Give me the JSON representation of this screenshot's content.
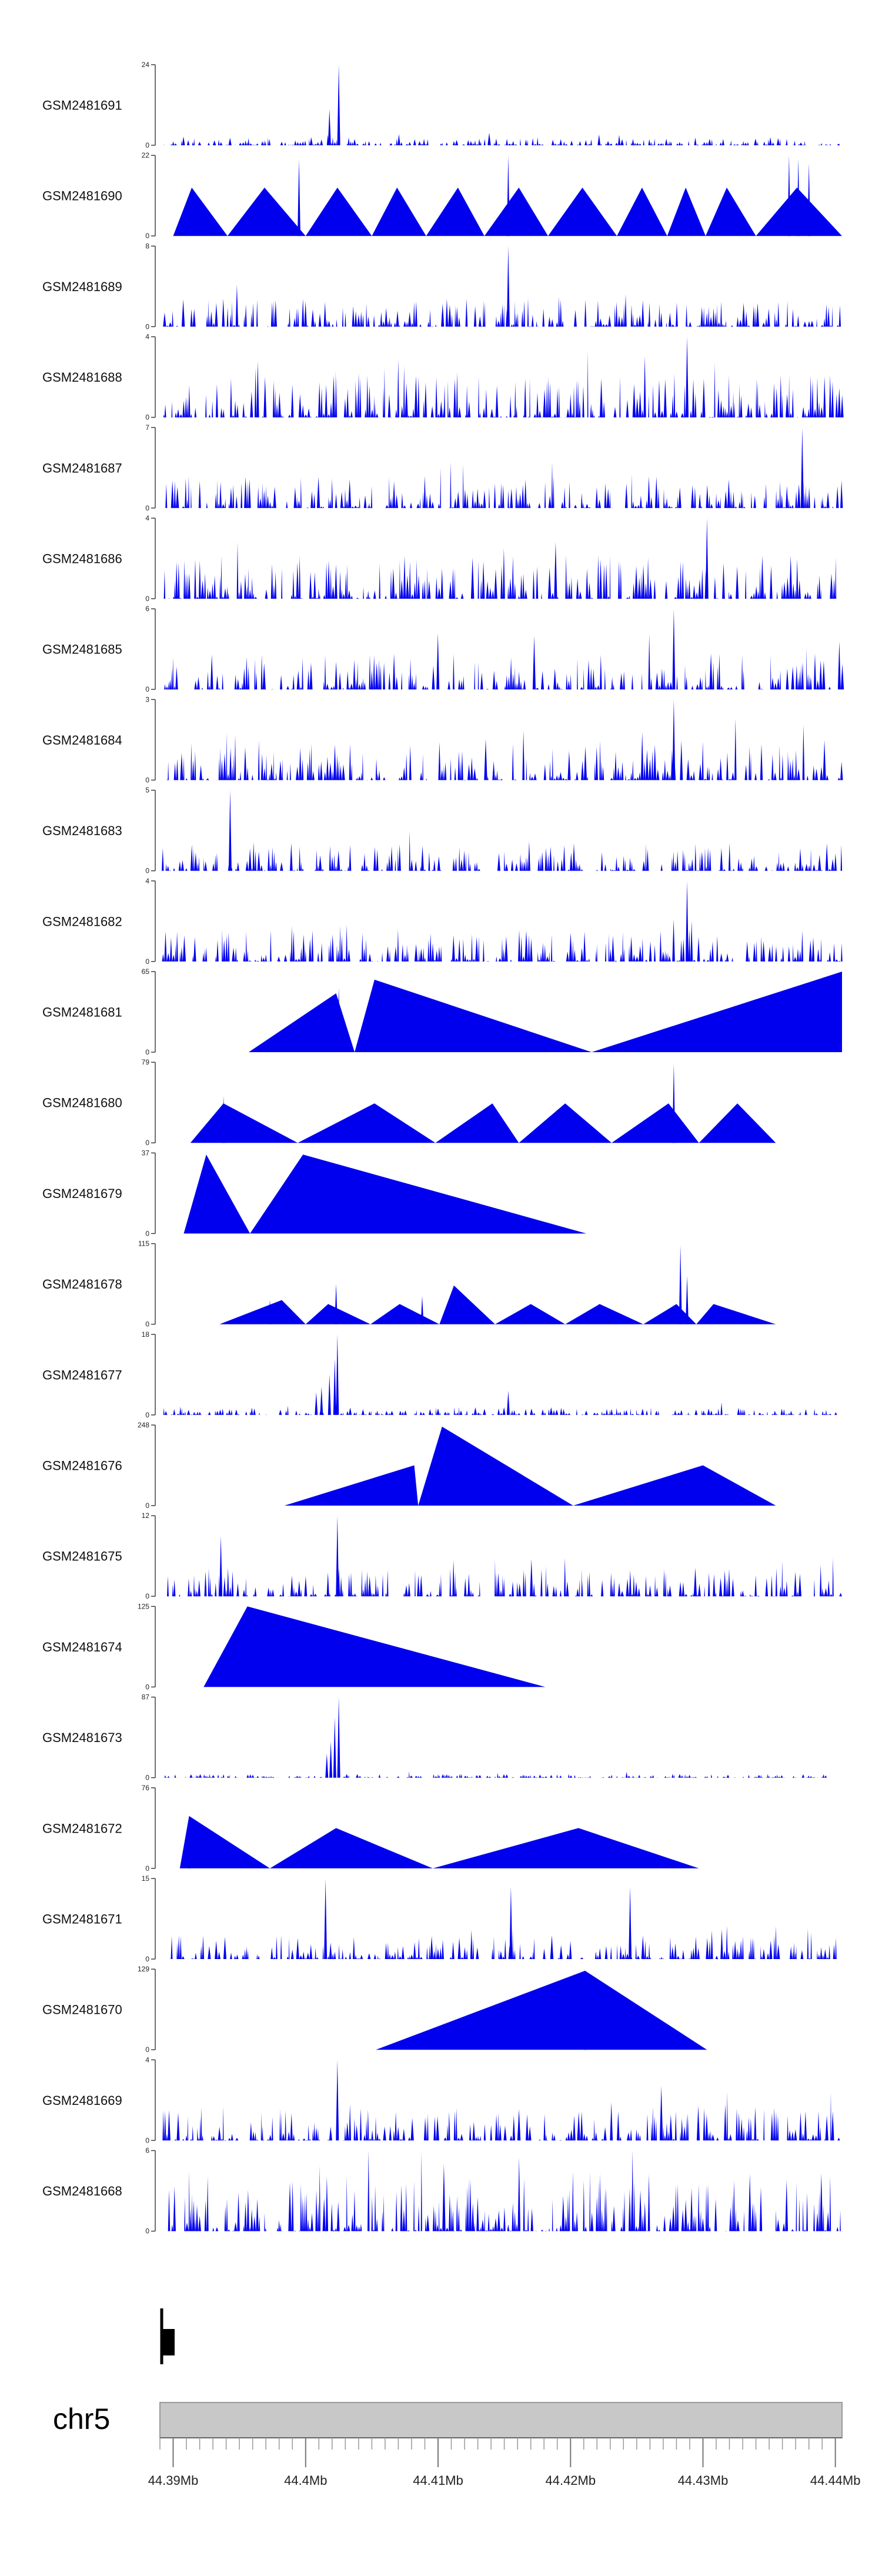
{
  "chart_data": {
    "type": "area",
    "title": "",
    "chromosome": "chr5",
    "x_range_mb": [
      44.389,
      44.4405
    ],
    "axis_tick_labels": [
      "44.39Mb",
      "44.4Mb",
      "44.41Mb",
      "44.42Mb",
      "44.43Mb",
      "44.44Mb"
    ],
    "axis_tick_positions_mb": [
      44.39,
      44.4,
      44.41,
      44.42,
      44.43,
      44.44
    ],
    "fill_color": "#0000ee",
    "tracks": [
      {
        "name": "GSM2481691",
        "ymax": 24,
        "style": "dense",
        "seed": 11,
        "base": 0.1,
        "spikes": [
          [
            44.4025,
            1.0
          ],
          [
            44.4018,
            0.45
          ]
        ]
      },
      {
        "name": "GSM2481690",
        "ymax": 22,
        "style": "peaks",
        "seed": 12,
        "peaks": [
          [
            44.39,
            44.3914,
            44.3941,
            0.6
          ],
          [
            44.3941,
            44.3969,
            44.4,
            0.6
          ],
          [
            44.4,
            44.4024,
            44.405,
            0.6
          ],
          [
            44.405,
            44.4069,
            44.4091,
            0.6
          ],
          [
            44.4091,
            44.4115,
            44.4135,
            0.6
          ],
          [
            44.4135,
            44.4161,
            44.4183,
            0.6
          ],
          [
            44.4183,
            44.4209,
            44.4235,
            0.6
          ],
          [
            44.4235,
            44.4254,
            44.4273,
            0.6
          ],
          [
            44.4273,
            44.4287,
            44.4302,
            0.6
          ],
          [
            44.4302,
            44.4318,
            44.434,
            0.6
          ],
          [
            44.434,
            44.4371,
            44.4405,
            0.6
          ]
        ],
        "spikes": [
          [
            44.3995,
            0.95
          ],
          [
            44.4153,
            1.0
          ],
          [
            44.4365,
            1.0
          ],
          [
            44.4372,
            0.96
          ],
          [
            44.438,
            0.9
          ]
        ]
      },
      {
        "name": "GSM2481689",
        "ymax": 8,
        "style": "dense",
        "seed": 13,
        "base": 0.35,
        "spikes": [
          [
            44.4153,
            1.0
          ]
        ]
      },
      {
        "name": "GSM2481688",
        "ymax": 4,
        "style": "dense",
        "seed": 14,
        "base": 0.55,
        "spikes": [
          [
            44.4288,
            1.0
          ]
        ]
      },
      {
        "name": "GSM2481687",
        "ymax": 7,
        "style": "dense",
        "seed": 15,
        "base": 0.4,
        "spikes": [
          [
            44.4375,
            1.0
          ]
        ]
      },
      {
        "name": "GSM2481686",
        "ymax": 4,
        "style": "dense",
        "seed": 16,
        "base": 0.55,
        "spikes": [
          [
            44.4303,
            1.0
          ]
        ]
      },
      {
        "name": "GSM2481685",
        "ymax": 6,
        "style": "dense",
        "seed": 17,
        "base": 0.45,
        "spikes": [
          [
            44.4278,
            1.0
          ]
        ]
      },
      {
        "name": "GSM2481684",
        "ymax": 3,
        "style": "dense",
        "seed": 18,
        "base": 0.5,
        "spikes": [
          [
            44.4278,
            1.0
          ]
        ]
      },
      {
        "name": "GSM2481683",
        "ymax": 5,
        "style": "dense",
        "seed": 19,
        "base": 0.35,
        "spikes": [
          [
            44.3943,
            1.0
          ]
        ]
      },
      {
        "name": "GSM2481682",
        "ymax": 4,
        "style": "dense",
        "seed": 20,
        "base": 0.4,
        "spikes": [
          [
            44.4288,
            1.0
          ]
        ]
      },
      {
        "name": "GSM2481681",
        "ymax": 65,
        "style": "peaks",
        "seed": 21,
        "peaks": [
          [
            44.3957,
            44.4023,
            44.4037,
            0.73
          ],
          [
            44.4037,
            44.4052,
            44.4216,
            0.9
          ],
          [
            44.4216,
            44.4405,
            44.4405,
            1.0
          ]
        ],
        "spikes": [
          [
            44.4025,
            0.8
          ]
        ]
      },
      {
        "name": "GSM2481680",
        "ymax": 79,
        "style": "peaks",
        "seed": 22,
        "peaks": [
          [
            44.3913,
            44.3938,
            44.3994,
            0.49
          ],
          [
            44.3994,
            44.4052,
            44.4098,
            0.49
          ],
          [
            44.4098,
            44.4141,
            44.4161,
            0.49
          ],
          [
            44.4161,
            44.4196,
            44.4231,
            0.49
          ],
          [
            44.4231,
            44.4274,
            44.4297,
            0.49
          ],
          [
            44.4297,
            44.4326,
            44.4355,
            0.49
          ]
        ],
        "spikes": [
          [
            44.3938,
            0.58
          ],
          [
            44.4278,
            0.98
          ]
        ]
      },
      {
        "name": "GSM2481679",
        "ymax": 37,
        "style": "peaks",
        "seed": 23,
        "peaks": [
          [
            44.3908,
            44.3925,
            44.3958,
            0.98
          ],
          [
            44.3958,
            44.3998,
            44.4212,
            0.98
          ]
        ],
        "spikes": []
      },
      {
        "name": "GSM2481678",
        "ymax": 115,
        "style": "peaks",
        "seed": 24,
        "peaks": [
          [
            44.3935,
            44.3982,
            44.4,
            0.3
          ],
          [
            44.4,
            44.4017,
            44.4049,
            0.25
          ],
          [
            44.4049,
            44.4071,
            44.4101,
            0.25
          ],
          [
            44.4101,
            44.4112,
            44.4143,
            0.48
          ],
          [
            44.4143,
            44.417,
            44.4196,
            0.25
          ],
          [
            44.4196,
            44.4222,
            44.4255,
            0.25
          ],
          [
            44.4255,
            44.428,
            44.4295,
            0.25
          ],
          [
            44.4295,
            44.4308,
            44.4355,
            0.25
          ]
        ],
        "spikes": [
          [
            44.3973,
            0.3
          ],
          [
            44.4023,
            0.5
          ],
          [
            44.4088,
            0.35
          ],
          [
            44.4283,
            0.98
          ],
          [
            44.4288,
            0.6
          ]
        ]
      },
      {
        "name": "GSM2481677",
        "ymax": 18,
        "style": "dense",
        "seed": 25,
        "base": 0.1,
        "spikes": [
          [
            44.4024,
            1.0
          ],
          [
            44.4022,
            0.7
          ],
          [
            44.4018,
            0.5
          ],
          [
            44.4012,
            0.35
          ],
          [
            44.4008,
            0.28
          ],
          [
            44.4153,
            0.3
          ]
        ]
      },
      {
        "name": "GSM2481676",
        "ymax": 248,
        "style": "peaks",
        "seed": 26,
        "peaks": [
          [
            44.3984,
            44.4082,
            44.4085,
            0.5
          ],
          [
            44.4085,
            44.4103,
            44.4202,
            0.98
          ],
          [
            44.4202,
            44.43,
            44.4355,
            0.5
          ]
        ],
        "spikes": []
      },
      {
        "name": "GSM2481675",
        "ymax": 12,
        "style": "dense",
        "seed": 27,
        "base": 0.35,
        "spikes": [
          [
            44.3936,
            0.75
          ],
          [
            44.4024,
            1.0
          ]
        ]
      },
      {
        "name": "GSM2481674",
        "ymax": 125,
        "style": "peaks",
        "seed": 28,
        "peaks": [
          [
            44.3923,
            44.3956,
            44.4181,
            1.0
          ]
        ],
        "spikes": []
      },
      {
        "name": "GSM2481673",
        "ymax": 87,
        "style": "dense",
        "seed": 29,
        "base": 0.05,
        "spikes": [
          [
            44.4025,
            1.0
          ],
          [
            44.4022,
            0.75
          ],
          [
            44.4019,
            0.45
          ],
          [
            44.4016,
            0.3
          ]
        ]
      },
      {
        "name": "GSM2481672",
        "ymax": 76,
        "style": "peaks",
        "seed": 30,
        "peaks": [
          [
            44.3905,
            44.3912,
            44.3973,
            0.65
          ],
          [
            44.3973,
            44.4023,
            44.4096,
            0.5
          ],
          [
            44.4096,
            44.4206,
            44.4297,
            0.5
          ]
        ],
        "spikes": [
          [
            44.3912,
            0.65
          ]
        ]
      },
      {
        "name": "GSM2481671",
        "ymax": 15,
        "style": "dense",
        "seed": 31,
        "base": 0.3,
        "spikes": [
          [
            44.4015,
            1.0
          ],
          [
            44.4155,
            0.9
          ],
          [
            44.4245,
            0.9
          ]
        ]
      },
      {
        "name": "GSM2481670",
        "ymax": 129,
        "style": "peaks",
        "seed": 32,
        "peaks": [
          [
            44.4053,
            44.4211,
            44.4303,
            0.98
          ]
        ],
        "spikes": [
          [
            44.4211,
            1.0
          ]
        ]
      },
      {
        "name": "GSM2481669",
        "ymax": 4,
        "style": "dense",
        "seed": 33,
        "base": 0.45,
        "spikes": [
          [
            44.4024,
            1.0
          ]
        ]
      },
      {
        "name": "GSM2481668",
        "ymax": 6,
        "style": "dense",
        "seed": 34,
        "base": 0.75,
        "spikes": []
      }
    ]
  }
}
